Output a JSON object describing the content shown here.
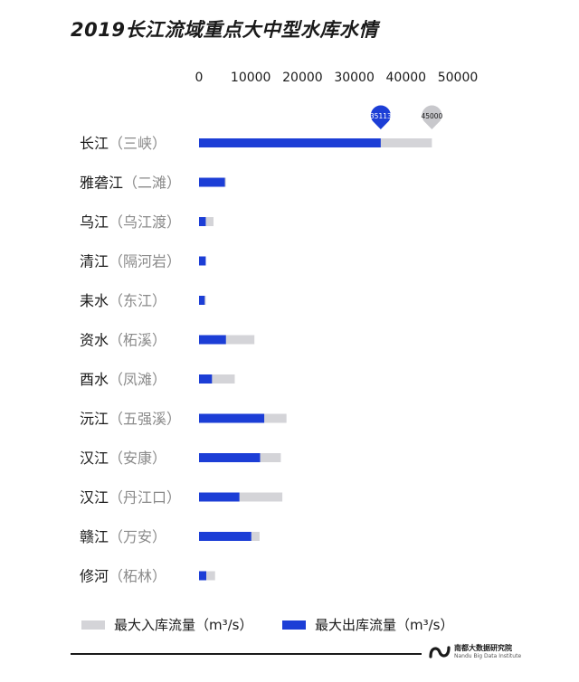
{
  "title": "2019长江流域重点大中型水库水情",
  "chart_data": {
    "type": "bar",
    "orientation": "horizontal",
    "xlim": [
      0,
      50000
    ],
    "ticks": [
      "0",
      "10000",
      "20000",
      "30000",
      "40000",
      "50000"
    ],
    "categories": [
      {
        "river": "长江",
        "station": "三峡"
      },
      {
        "river": "雅砻江",
        "station": "二滩"
      },
      {
        "river": "乌江",
        "station": "乌江渡"
      },
      {
        "river": "清江",
        "station": "隔河岩"
      },
      {
        "river": "耒水",
        "station": "东江"
      },
      {
        "river": "资水",
        "station": "柘溪"
      },
      {
        "river": "酉水",
        "station": "凤滩"
      },
      {
        "river": "沅江",
        "station": "五强溪"
      },
      {
        "river": "汉江",
        "station": "安康"
      },
      {
        "river": "汉江",
        "station": "丹江口"
      },
      {
        "river": "赣江",
        "station": "万安"
      },
      {
        "river": "修河",
        "station": "柘林"
      }
    ],
    "series": [
      {
        "name": "最大入库流量（m³/s）",
        "color": "#d4d4d8",
        "values": [
          45000,
          5200,
          2800,
          1000,
          1300,
          10700,
          6900,
          16900,
          15800,
          16100,
          11700,
          3100
        ]
      },
      {
        "name": "最大出库流量（m³/s）",
        "color": "#1c3ed6",
        "values": [
          35113,
          5000,
          1300,
          1300,
          1100,
          5200,
          2500,
          12600,
          11800,
          7800,
          10100,
          1400
        ]
      }
    ],
    "annotations": [
      {
        "label": "35113",
        "value": 35113,
        "series": 1,
        "color": "#1c3ed6"
      },
      {
        "label": "45000",
        "value": 45000,
        "series": 0,
        "color": "#c8c8cc"
      }
    ],
    "legend_position": "bottom",
    "grid": false
  },
  "footer": {
    "logo_cn": "南都大数据研究院",
    "logo_en": "Nandu Big Data Institute"
  }
}
